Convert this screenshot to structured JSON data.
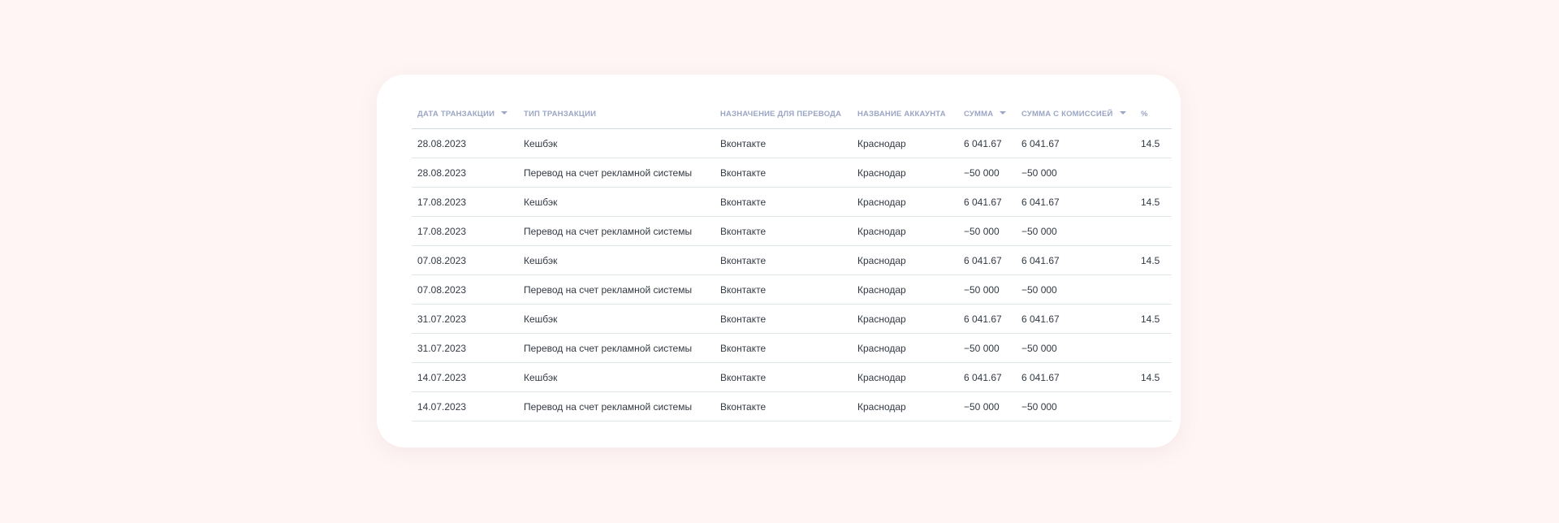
{
  "table": {
    "columns": [
      {
        "label": "Дата транзакции",
        "sortable": true
      },
      {
        "label": "Тип транзакции",
        "sortable": false
      },
      {
        "label": "Назначение для перевода",
        "sortable": false
      },
      {
        "label": "Название аккаунта",
        "sortable": false
      },
      {
        "label": "Сумма",
        "sortable": true
      },
      {
        "label": "Сумма с комиссией",
        "sortable": true
      },
      {
        "label": "%",
        "sortable": false
      }
    ],
    "rows": [
      {
        "date": "28.08.2023",
        "type": "Кешбэк",
        "purpose": "Вконтакте",
        "account": "Краснодар",
        "amount": "6 041.67",
        "amount_fee": "6 041.67",
        "percent": "14.5"
      },
      {
        "date": "28.08.2023",
        "type": "Перевод на счет рекламной системы",
        "purpose": "Вконтакте",
        "account": "Краснодар",
        "amount": "−50 000",
        "amount_fee": "−50 000",
        "percent": ""
      },
      {
        "date": "17.08.2023",
        "type": "Кешбэк",
        "purpose": "Вконтакте",
        "account": "Краснодар",
        "amount": "6 041.67",
        "amount_fee": "6 041.67",
        "percent": "14.5"
      },
      {
        "date": "17.08.2023",
        "type": "Перевод на счет рекламной системы",
        "purpose": "Вконтакте",
        "account": "Краснодар",
        "amount": "−50 000",
        "amount_fee": "−50 000",
        "percent": ""
      },
      {
        "date": "07.08.2023",
        "type": "Кешбэк",
        "purpose": "Вконтакте",
        "account": "Краснодар",
        "amount": "6 041.67",
        "amount_fee": "6 041.67",
        "percent": "14.5"
      },
      {
        "date": "07.08.2023",
        "type": "Перевод на счет рекламной системы",
        "purpose": "Вконтакте",
        "account": "Краснодар",
        "amount": "−50 000",
        "amount_fee": "−50 000",
        "percent": ""
      },
      {
        "date": "31.07.2023",
        "type": "Кешбэк",
        "purpose": "Вконтакте",
        "account": "Краснодар",
        "amount": "6 041.67",
        "amount_fee": "6 041.67",
        "percent": "14.5"
      },
      {
        "date": "31.07.2023",
        "type": "Перевод на счет рекламной системы",
        "purpose": "Вконтакте",
        "account": "Краснодар",
        "amount": "−50 000",
        "amount_fee": "−50 000",
        "percent": ""
      },
      {
        "date": "14.07.2023",
        "type": "Кешбэк",
        "purpose": "Вконтакте",
        "account": "Краснодар",
        "amount": "6 041.67",
        "amount_fee": "6 041.67",
        "percent": "14.5"
      },
      {
        "date": "14.07.2023",
        "type": "Перевод на счет рекламной системы",
        "purpose": "Вконтакте",
        "account": "Краснодар",
        "amount": "−50 000",
        "amount_fee": "−50 000",
        "percent": ""
      }
    ]
  },
  "icons": {
    "sort": "caret-down-icon"
  },
  "colors": {
    "page_background": "#fff5f5",
    "card_background": "#ffffff",
    "header_text": "#9aa6c4",
    "cell_text": "#333a44",
    "divider": "#dfe6ea"
  }
}
